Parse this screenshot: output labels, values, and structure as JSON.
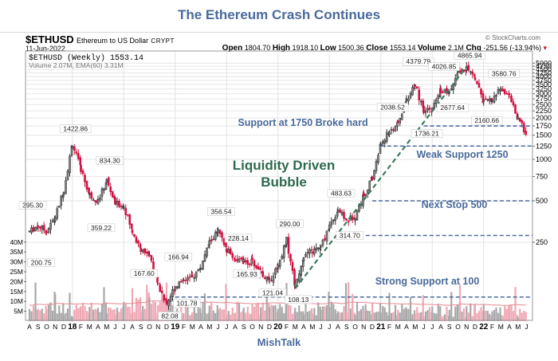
{
  "title": "The Ethereum Crash Continues",
  "footer": "MishTalk",
  "header": {
    "symbol": "$ETHUSD",
    "description": "Ethereum to US Dollar",
    "exchange": "CRYPT",
    "date": "11-Jun-2022",
    "credit": "© StockCharts.com",
    "open_label": "Open",
    "open": "1804.70",
    "high_label": "High",
    "high": "1918.10",
    "low_label": "Low",
    "low": "1500.36",
    "close_label": "Close",
    "close": "1553.14",
    "volume_label": "Volume",
    "volume": "2.1M",
    "chg_label": "Chg",
    "chg": "-251.56 (-13.94%)"
  },
  "colors": {
    "up": "#333333",
    "down": "#d01040",
    "volume_up": "#a8a8a8",
    "volume_down": "#f0a8b4",
    "ema": "#e88890",
    "support_line": "#4a6a9c",
    "trend_line": "#3a7a5a",
    "annotation_blue": "#4a6a9c",
    "annotation_green": "#2e6a4e"
  },
  "chart_data": {
    "type": "candlestick",
    "title": "$ETHUSD (Weekly) 1553.14",
    "volume_legend": "Volume 2.07M, EMA(60) 3.31M",
    "scale": "log",
    "ylim": [
      80,
      5200
    ],
    "y_ticks": [
      250,
      500,
      750,
      1000,
      1250,
      1500,
      1750,
      2000,
      2250,
      2500,
      2750,
      3000,
      3250,
      3500,
      3750,
      4000,
      4250,
      4500,
      4750,
      5000
    ],
    "volume_ticks": [
      "5M",
      "10M",
      "15M",
      "20M",
      "25M",
      "30M",
      "35M",
      "40M"
    ],
    "x_ticks": [
      "A",
      "S",
      "O",
      "N",
      "D",
      "18",
      "F",
      "M",
      "A",
      "M",
      "J",
      "J",
      "A",
      "S",
      "O",
      "N",
      "D",
      "19",
      "F",
      "M",
      "A",
      "M",
      "J",
      "J",
      "A",
      "S",
      "O",
      "N",
      "D",
      "20",
      "F",
      "M",
      "A",
      "M",
      "J",
      "J",
      "A",
      "S",
      "O",
      "N",
      "D",
      "21",
      "F",
      "M",
      "A",
      "M",
      "J",
      "J",
      "A",
      "S",
      "O",
      "N",
      "D",
      "22",
      "F",
      "M",
      "A",
      "M",
      "J"
    ],
    "x_range": [
      "2017-08",
      "2022-06"
    ],
    "price_path_monthly": [
      {
        "m": "2017-08",
        "v": 300
      },
      {
        "m": "2017-09",
        "v": 330
      },
      {
        "m": "2017-10",
        "v": 300
      },
      {
        "m": "2017-11",
        "v": 380
      },
      {
        "m": "2017-12",
        "v": 600
      },
      {
        "m": "2018-01",
        "v": 1300
      },
      {
        "m": "2018-02",
        "v": 850
      },
      {
        "m": "2018-03",
        "v": 550
      },
      {
        "m": "2018-04",
        "v": 500
      },
      {
        "m": "2018-05",
        "v": 700
      },
      {
        "m": "2018-06",
        "v": 480
      },
      {
        "m": "2018-07",
        "v": 460
      },
      {
        "m": "2018-08",
        "v": 300
      },
      {
        "m": "2018-09",
        "v": 220
      },
      {
        "m": "2018-10",
        "v": 205
      },
      {
        "m": "2018-11",
        "v": 120
      },
      {
        "m": "2018-12",
        "v": 90
      },
      {
        "m": "2019-01",
        "v": 120
      },
      {
        "m": "2019-02",
        "v": 135
      },
      {
        "m": "2019-03",
        "v": 138
      },
      {
        "m": "2019-04",
        "v": 165
      },
      {
        "m": "2019-05",
        "v": 250
      },
      {
        "m": "2019-06",
        "v": 300
      },
      {
        "m": "2019-07",
        "v": 220
      },
      {
        "m": "2019-08",
        "v": 190
      },
      {
        "m": "2019-09",
        "v": 180
      },
      {
        "m": "2019-10",
        "v": 180
      },
      {
        "m": "2019-11",
        "v": 150
      },
      {
        "m": "2019-12",
        "v": 130
      },
      {
        "m": "2020-01",
        "v": 170
      },
      {
        "m": "2020-02",
        "v": 260
      },
      {
        "m": "2020-03",
        "v": 120
      },
      {
        "m": "2020-04",
        "v": 200
      },
      {
        "m": "2020-05",
        "v": 215
      },
      {
        "m": "2020-06",
        "v": 230
      },
      {
        "m": "2020-07",
        "v": 330
      },
      {
        "m": "2020-08",
        "v": 430
      },
      {
        "m": "2020-09",
        "v": 360
      },
      {
        "m": "2020-10",
        "v": 390
      },
      {
        "m": "2020-11",
        "v": 550
      },
      {
        "m": "2020-12",
        "v": 730
      },
      {
        "m": "2021-01",
        "v": 1300
      },
      {
        "m": "2021-02",
        "v": 1600
      },
      {
        "m": "2021-03",
        "v": 1800
      },
      {
        "m": "2021-04",
        "v": 2700
      },
      {
        "m": "2021-05",
        "v": 3500
      },
      {
        "m": "2021-06",
        "v": 2200
      },
      {
        "m": "2021-07",
        "v": 2300
      },
      {
        "m": "2021-08",
        "v": 3200
      },
      {
        "m": "2021-09",
        "v": 3000
      },
      {
        "m": "2021-10",
        "v": 4200
      },
      {
        "m": "2021-11",
        "v": 4600
      },
      {
        "m": "2021-12",
        "v": 3900
      },
      {
        "m": "2022-01",
        "v": 2600
      },
      {
        "m": "2022-02",
        "v": 2700
      },
      {
        "m": "2022-03",
        "v": 3300
      },
      {
        "m": "2022-04",
        "v": 2900
      },
      {
        "m": "2022-05",
        "v": 1950
      },
      {
        "m": "2022-06",
        "v": 1553
      }
    ],
    "price_labels": [
      {
        "m": "2017-08",
        "v": 395.3,
        "text": "395.30",
        "pos": "above"
      },
      {
        "m": "2017-09",
        "v": 200.75,
        "text": "200.75",
        "pos": "below"
      },
      {
        "m": "2018-01",
        "v": 1422.86,
        "text": "1422.86",
        "pos": "above"
      },
      {
        "m": "2018-04",
        "v": 359.22,
        "text": "359.22",
        "pos": "below"
      },
      {
        "m": "2018-05",
        "v": 834.3,
        "text": "834.30",
        "pos": "above"
      },
      {
        "m": "2018-09",
        "v": 167.6,
        "text": "167.60",
        "pos": "below"
      },
      {
        "m": "2018-12",
        "v": 82.08,
        "text": "82.08",
        "pos": "below"
      },
      {
        "m": "2019-01",
        "v": 166.94,
        "text": "166.94",
        "pos": "above"
      },
      {
        "m": "2019-02",
        "v": 101.78,
        "text": "101.78",
        "pos": "below"
      },
      {
        "m": "2019-06",
        "v": 356.54,
        "text": "356.54",
        "pos": "above"
      },
      {
        "m": "2019-08",
        "v": 228.14,
        "text": "228.14",
        "pos": "above"
      },
      {
        "m": "2019-09",
        "v": 165.93,
        "text": "165.93",
        "pos": "below"
      },
      {
        "m": "2019-12",
        "v": 121.04,
        "text": "121.04",
        "pos": "below"
      },
      {
        "m": "2020-02",
        "v": 290.0,
        "text": "290.00",
        "pos": "above"
      },
      {
        "m": "2020-03",
        "v": 108.13,
        "text": "108.13",
        "pos": "below"
      },
      {
        "m": "2020-08",
        "v": 483.63,
        "text": "483.63",
        "pos": "above"
      },
      {
        "m": "2020-09",
        "v": 314.7,
        "text": "314.70",
        "pos": "below"
      },
      {
        "m": "2021-02",
        "v": 2038.52,
        "text": "2038.52",
        "pos": "above"
      },
      {
        "m": "2021-05",
        "v": 4379.79,
        "text": "4379.79",
        "pos": "above"
      },
      {
        "m": "2021-06",
        "v": 1736.21,
        "text": "1736.21",
        "pos": "below"
      },
      {
        "m": "2021-08",
        "v": 4026.85,
        "text": "4026.85",
        "pos": "above"
      },
      {
        "m": "2021-09",
        "v": 2677.64,
        "text": "2677.64",
        "pos": "below"
      },
      {
        "m": "2021-11",
        "v": 4865.94,
        "text": "4865.94",
        "pos": "above"
      },
      {
        "m": "2022-01",
        "v": 2160.66,
        "text": "2160.66",
        "pos": "below"
      },
      {
        "m": "2022-03",
        "v": 3580.76,
        "text": "3580.76",
        "pos": "above"
      }
    ],
    "support_lines": [
      {
        "value": 1750,
        "from": "2021-06",
        "label": "Support at 1750 Broke hard"
      },
      {
        "value": 1250,
        "from": "2021-01",
        "label": "Weak Support 1250"
      },
      {
        "value": 500,
        "from": "2020-12",
        "label": "Next Stop 500"
      },
      {
        "value": 280,
        "from": "2020-09",
        "label": ""
      },
      {
        "value": 100,
        "from": "2019-01",
        "label": "Strong Support at 100"
      }
    ],
    "trend_line": {
      "from": {
        "m": "2020-03",
        "v": 115
      },
      "to": {
        "m": "2021-11",
        "v": 4700
      }
    },
    "annotation": "Liquidity Driven\nBubble"
  }
}
